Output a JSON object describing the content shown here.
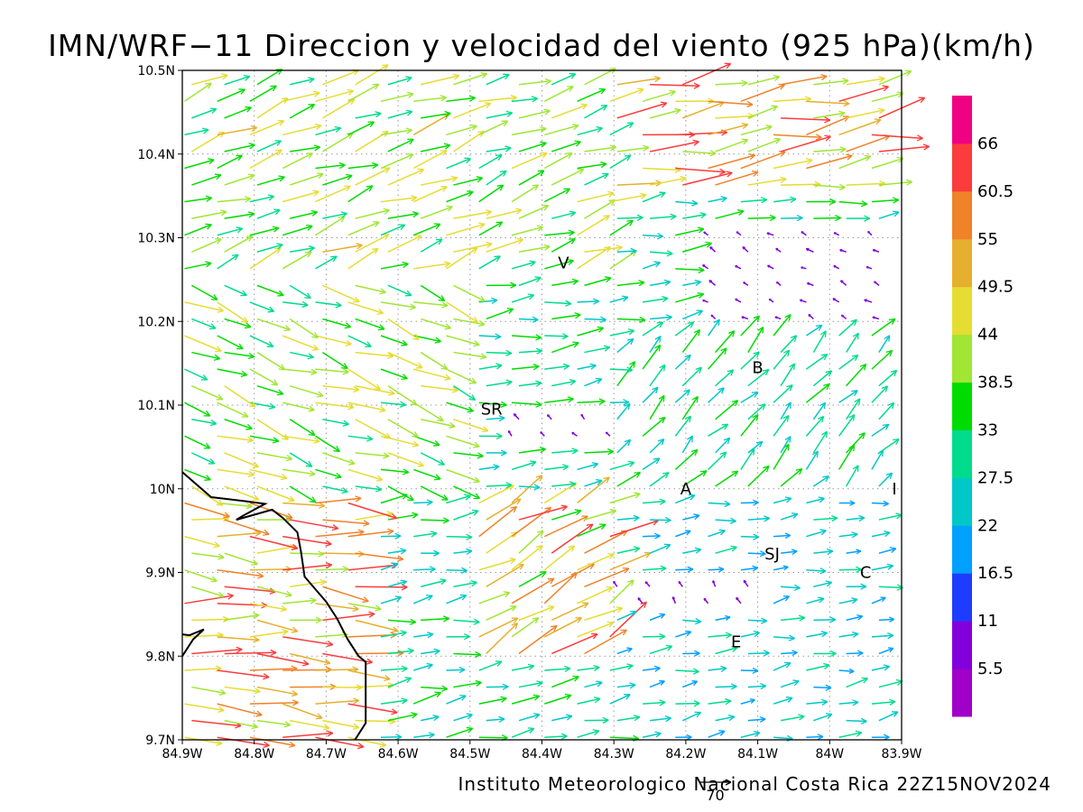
{
  "chart_data": {
    "type": "vector-field",
    "title": "IMN/WRF−11 Direccion y velocidad del viento (925 hPa)(km/h)",
    "credit": "Instituto Meteorologico Nacional Costa Rica 22Z15NOV2024",
    "x_ticks": [
      {
        "value": -84.9,
        "label": "84.9W"
      },
      {
        "value": -84.8,
        "label": "84.8W"
      },
      {
        "value": -84.7,
        "label": "84.7W"
      },
      {
        "value": -84.6,
        "label": "84.6W"
      },
      {
        "value": -84.5,
        "label": "84.5W"
      },
      {
        "value": -84.4,
        "label": "84.4W"
      },
      {
        "value": -84.3,
        "label": "84.3W"
      },
      {
        "value": -84.2,
        "label": "84.2W"
      },
      {
        "value": -84.1,
        "label": "84.1W"
      },
      {
        "value": -84.0,
        "label": "84W"
      },
      {
        "value": -83.9,
        "label": "83.9W"
      }
    ],
    "y_ticks": [
      {
        "value": 9.7,
        "label": "9.7N"
      },
      {
        "value": 9.8,
        "label": "9.8N"
      },
      {
        "value": 9.9,
        "label": "9.9N"
      },
      {
        "value": 10.0,
        "label": "10N"
      },
      {
        "value": 10.1,
        "label": "10.1N"
      },
      {
        "value": 10.2,
        "label": "10.2N"
      },
      {
        "value": 10.3,
        "label": "10.3N"
      },
      {
        "value": 10.4,
        "label": "10.4N"
      },
      {
        "value": 10.5,
        "label": "10.5N"
      }
    ],
    "xlim": [
      -84.9,
      -83.9
    ],
    "ylim": [
      9.7,
      10.5
    ],
    "grid": true,
    "colorbar": {
      "placement": "right",
      "colors": [
        "#a000c8",
        "#8200dc",
        "#1e3cff",
        "#00a0ff",
        "#00c8c8",
        "#00dc8c",
        "#00dc00",
        "#a0e632",
        "#e6dc32",
        "#e6af2d",
        "#f08228",
        "#fa3c3c",
        "#f00082"
      ],
      "labels": [
        "5.5",
        "11",
        "16.5",
        "22",
        "27.5",
        "33",
        "38.5",
        "44",
        "49.5",
        "55",
        "60.5",
        "66"
      ]
    },
    "reference_vector": {
      "label": "70",
      "speed": 70
    },
    "locations": [
      {
        "name": "V",
        "lon": -84.37,
        "lat": 10.27
      },
      {
        "name": "SR",
        "lon": -84.47,
        "lat": 10.095
      },
      {
        "name": "B",
        "lon": -84.1,
        "lat": 10.145
      },
      {
        "name": "A",
        "lon": -84.2,
        "lat": 10.0
      },
      {
        "name": "I",
        "lon": -83.91,
        "lat": 10.0
      },
      {
        "name": "SJ",
        "lon": -84.08,
        "lat": 9.922
      },
      {
        "name": "C",
        "lon": -83.95,
        "lat": 9.9
      },
      {
        "name": "E",
        "lon": -84.13,
        "lat": 9.817
      }
    ],
    "coastline": [
      [
        -84.9,
        10.02
      ],
      [
        -84.86,
        9.99
      ],
      [
        -84.81,
        9.985
      ],
      [
        -84.785,
        9.982
      ],
      [
        -84.815,
        9.968
      ],
      [
        -84.825,
        9.963
      ],
      [
        -84.775,
        9.975
      ],
      [
        -84.76,
        9.965
      ],
      [
        -84.74,
        9.948
      ],
      [
        -84.735,
        9.925
      ],
      [
        -84.73,
        9.895
      ],
      [
        -84.715,
        9.88
      ],
      [
        -84.7,
        9.865
      ],
      [
        -84.685,
        9.845
      ],
      [
        -84.67,
        9.82
      ],
      [
        -84.655,
        9.8
      ],
      [
        -84.645,
        9.793
      ],
      [
        -84.645,
        9.78
      ],
      [
        -84.645,
        9.74
      ],
      [
        -84.645,
        9.72
      ],
      [
        -84.66,
        9.7
      ]
    ],
    "coastline_island": [
      [
        -84.9,
        9.8
      ],
      [
        -84.885,
        9.82
      ],
      [
        -84.87,
        9.832
      ],
      [
        -84.89,
        9.825
      ],
      [
        -84.9,
        9.826
      ]
    ],
    "wind_regions": [
      {
        "name": "west",
        "lon": [
          -84.9,
          -84.65
        ],
        "lat": [
          9.7,
          10.0
        ],
        "dir": 95,
        "speed": 52
      },
      {
        "name": "west-north",
        "lon": [
          -84.9,
          -84.5
        ],
        "lat": [
          10.0,
          10.25
        ],
        "dir": 110,
        "speed": 40
      },
      {
        "name": "north",
        "lon": [
          -84.9,
          -84.3
        ],
        "lat": [
          10.25,
          10.5
        ],
        "dir": 70,
        "speed": 40
      },
      {
        "name": "north-east",
        "lon": [
          -84.3,
          -83.9
        ],
        "lat": [
          10.35,
          10.5
        ],
        "dir": 80,
        "speed": 52
      },
      {
        "name": "calm-center",
        "lon": [
          -84.45,
          -84.3
        ],
        "lat": [
          10.05,
          10.1
        ],
        "dir": 315,
        "speed": 8
      },
      {
        "name": "calm-east",
        "lon": [
          -84.2,
          -83.9
        ],
        "lat": [
          10.2,
          10.32
        ],
        "dir": 300,
        "speed": 8
      },
      {
        "name": "jet",
        "lon": [
          -84.5,
          -84.3
        ],
        "lat": [
          9.8,
          10.0
        ],
        "dir": 60,
        "speed": 50
      },
      {
        "name": "east-south",
        "lon": [
          -84.3,
          -83.9
        ],
        "lat": [
          9.7,
          10.0
        ],
        "dir": 80,
        "speed": 24
      },
      {
        "name": "calm-south",
        "lon": [
          -84.3,
          -84.1
        ],
        "lat": [
          9.85,
          9.9
        ],
        "dir": 330,
        "speed": 8
      },
      {
        "name": "northeast-flow",
        "lon": [
          -84.3,
          -83.9
        ],
        "lat": [
          10.0,
          10.2
        ],
        "dir": 45,
        "speed": 30
      }
    ]
  }
}
